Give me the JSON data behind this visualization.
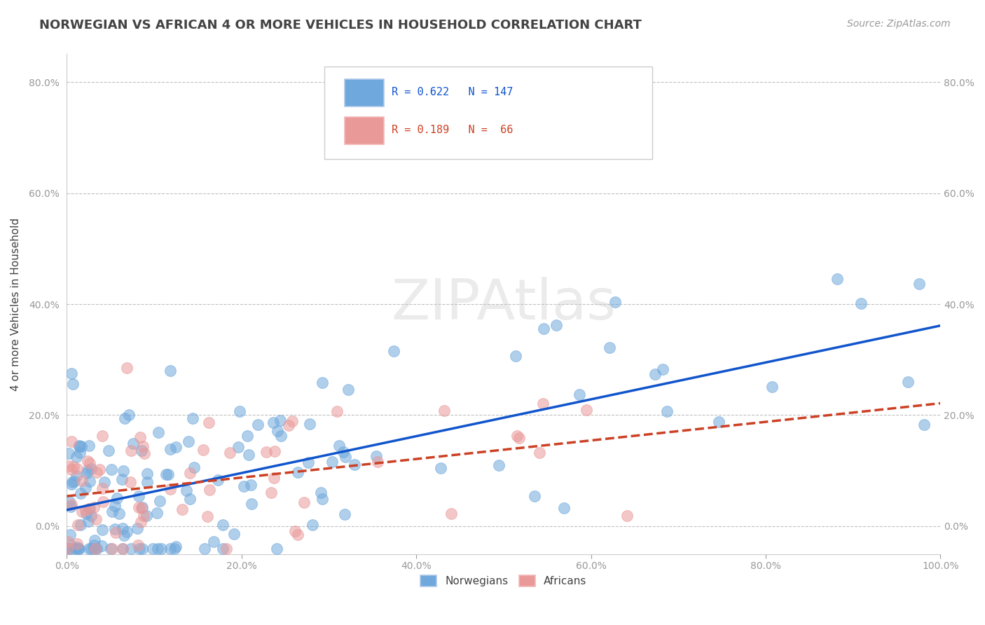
{
  "title": "NORWEGIAN VS AFRICAN 4 OR MORE VEHICLES IN HOUSEHOLD CORRELATION CHART",
  "source_text": "Source: ZipAtlas.com",
  "ylabel": "4 or more Vehicles in Household",
  "xlim": [
    0,
    100
  ],
  "ylim": [
    -5,
    85
  ],
  "norwegian_R": 0.622,
  "norwegian_N": 147,
  "african_R": 0.189,
  "african_N": 66,
  "blue_color": "#6fa8dc",
  "pink_color": "#ea9999",
  "blue_line_color": "#1155cc",
  "pink_line_color": "#cc4125",
  "watermark": "ZIPAtlas",
  "watermark_color": "#c0c0c0",
  "background_color": "#ffffff",
  "grid_color": "#c0c0c0",
  "title_color": "#434343",
  "axis_label_color": "#434343",
  "tick_color": "#999999",
  "norwegian_seed": 42,
  "african_seed": 99
}
